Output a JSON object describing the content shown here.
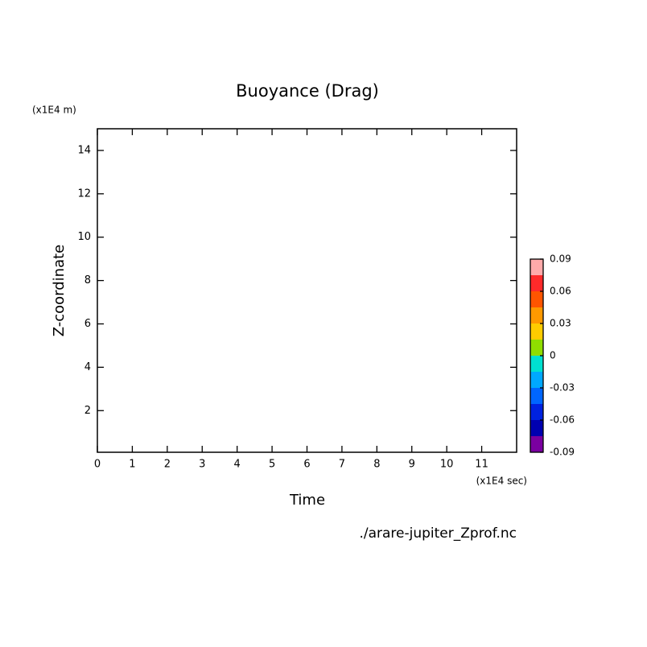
{
  "chart_data": {
    "type": "contour",
    "title": "Buoyance (Drag)",
    "xlabel": "Time",
    "ylabel": "Z-coordinate",
    "xunit": "(x1E4 sec)",
    "yunit": "(x1E4 m)",
    "source": "./arare-jupiter_Zprof.nc",
    "xlim": [
      0,
      12
    ],
    "ylim": [
      0.08,
      15
    ],
    "xticks": [
      0,
      1,
      2,
      3,
      4,
      5,
      6,
      7,
      8,
      9,
      10,
      11
    ],
    "yticks": [
      2,
      4,
      6,
      8,
      10,
      12,
      14
    ],
    "colorbar": {
      "levels": [
        -0.09,
        -0.075,
        -0.06,
        -0.045,
        -0.03,
        -0.015,
        0,
        0.015,
        0.03,
        0.045,
        0.06,
        0.075,
        0.09
      ],
      "colors": [
        "#7a00a0",
        "#0000b0",
        "#0022e0",
        "#0066ff",
        "#00a8ff",
        "#00e0d0",
        "#90dd00",
        "#ffcc00",
        "#ff9900",
        "#ff5500",
        "#ff2a2a",
        "#ffaaaa"
      ],
      "ticks": [
        -0.09,
        -0.06,
        -0.03,
        0,
        0.03,
        0.06,
        0.09
      ]
    }
  }
}
